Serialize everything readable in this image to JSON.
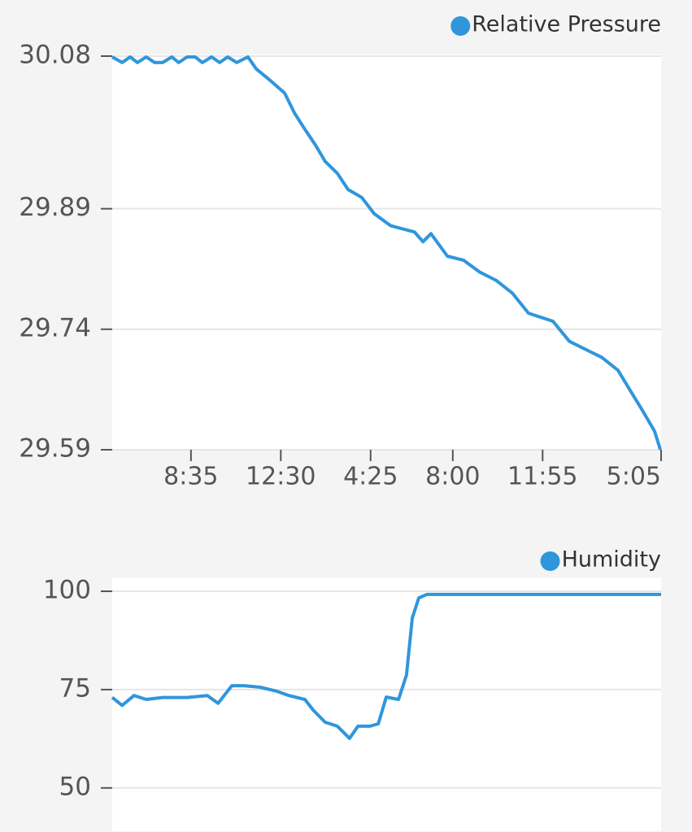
{
  "chart_data": [
    {
      "type": "line",
      "x": [
        -206,
        -180,
        -159,
        -140,
        -117,
        -95,
        -74,
        -50,
        -32,
        -10,
        11,
        30,
        54,
        75,
        96,
        120,
        149,
        171,
        209,
        245,
        271,
        298,
        326,
        351,
        383,
        411,
        447,
        479,
        522,
        585,
        607,
        628,
        671,
        713,
        756,
        798,
        841,
        883,
        947,
        990,
        1032,
        1075,
        1117,
        1149,
        1181,
        1213,
        1228
      ],
      "series": [
        {
          "name": "Relative Pressure",
          "color": "#2f96dc",
          "values": [
            30.079,
            30.072,
            30.079,
            30.072,
            30.079,
            30.072,
            30.072,
            30.079,
            30.072,
            30.079,
            30.079,
            30.072,
            30.079,
            30.072,
            30.079,
            30.072,
            30.079,
            30.064,
            30.049,
            30.034,
            30.009,
            29.989,
            29.969,
            29.949,
            29.934,
            29.914,
            29.904,
            29.884,
            29.869,
            29.861,
            29.849,
            29.859,
            29.831,
            29.826,
            29.811,
            29.801,
            29.785,
            29.76,
            29.75,
            29.725,
            29.715,
            29.705,
            29.689,
            29.664,
            29.639,
            29.613,
            29.59
          ]
        }
      ],
      "xlim": [
        -206,
        1230
      ],
      "xticks": [
        {
          "value": 0,
          "label": "8:35"
        },
        {
          "value": 235,
          "label": "12:30"
        },
        {
          "value": 470,
          "label": "4:25"
        },
        {
          "value": 685,
          "label": "8:00"
        },
        {
          "value": 920,
          "label": "11:55"
        },
        {
          "value": 1230,
          "label": "5:05"
        }
      ],
      "ylim": [
        29.59,
        30.08
      ],
      "yticks": [
        30.08,
        29.89,
        29.74,
        29.59
      ],
      "grid": true,
      "legend": "top-right"
    },
    {
      "type": "line",
      "x": [
        -206,
        -180,
        -149,
        -117,
        -74,
        -10,
        43,
        71,
        107,
        139,
        181,
        224,
        256,
        298,
        320,
        351,
        383,
        415,
        437,
        468,
        490,
        511,
        543,
        564,
        579,
        596,
        617,
        1230
      ],
      "series": [
        {
          "name": "Humidity",
          "color": "#2f96dc",
          "values": [
            73,
            71,
            73.5,
            72.5,
            73,
            73,
            73.5,
            71.5,
            76,
            76,
            75.6,
            74.6,
            73.5,
            72.5,
            69.8,
            66.7,
            65.7,
            62.6,
            65.7,
            65.7,
            66.3,
            73.1,
            72.5,
            78.7,
            93.2,
            98.3,
            99.2,
            99.2
          ]
        }
      ],
      "xlim": [
        -206,
        1230
      ],
      "ylim": [
        39,
        103
      ],
      "yticks": [
        100,
        75,
        50
      ],
      "grid": true,
      "legend": "top-right"
    }
  ]
}
